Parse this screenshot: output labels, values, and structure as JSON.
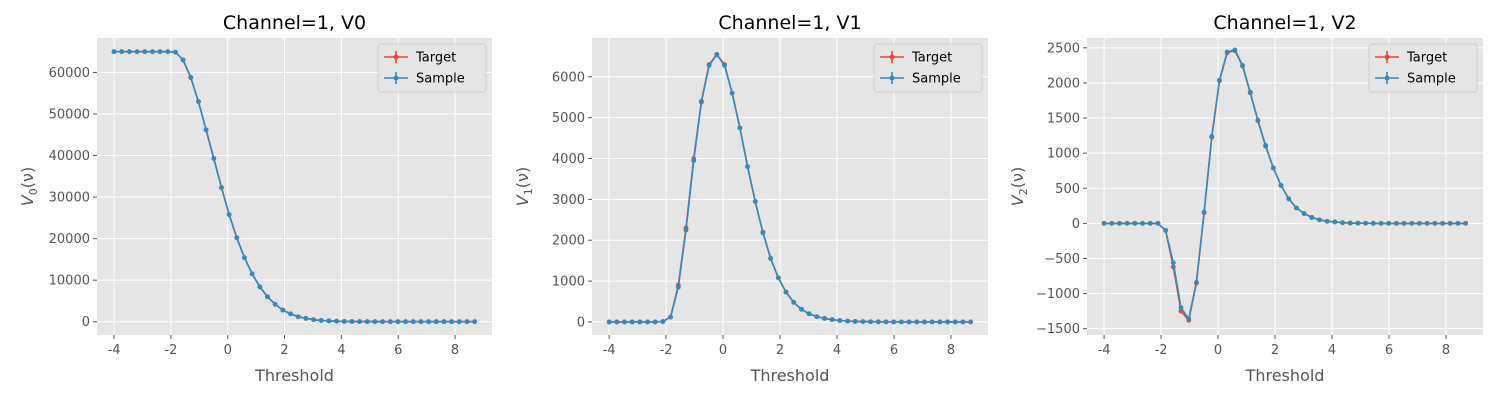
{
  "chart_data": [
    {
      "type": "line",
      "title": "Channel=1, V0",
      "xlabel": "Threshold",
      "ylabel": {
        "base": "V",
        "sub": "0",
        "arg": "(ν)"
      },
      "xlim": [
        -4.6,
        9.3
      ],
      "ylim": [
        -3200,
        68300
      ],
      "xticks": [
        -4,
        -2,
        0,
        2,
        4,
        6,
        8
      ],
      "yticks": [
        0,
        10000,
        20000,
        30000,
        40000,
        50000,
        60000
      ],
      "ytick_labels": [
        "0",
        "10000",
        "20000",
        "30000",
        "40000",
        "50000",
        "60000"
      ],
      "legend": {
        "position": "top-right",
        "entries": [
          "Target",
          "Sample"
        ]
      },
      "x": [
        -4.0,
        -3.73,
        -3.46,
        -3.19,
        -2.92,
        -2.65,
        -2.38,
        -2.11,
        -1.84,
        -1.57,
        -1.3,
        -1.03,
        -0.76,
        -0.49,
        -0.22,
        0.05,
        0.32,
        0.59,
        0.86,
        1.13,
        1.4,
        1.67,
        1.94,
        2.21,
        2.48,
        2.75,
        3.02,
        3.29,
        3.56,
        3.83,
        4.1,
        4.37,
        4.64,
        4.91,
        5.18,
        5.45,
        5.72,
        5.99,
        6.26,
        6.53,
        6.8,
        7.07,
        7.34,
        7.61,
        7.88,
        8.15,
        8.42,
        8.69
      ],
      "series": [
        {
          "name": "Target",
          "color": "#E24A33",
          "values": [
            65000,
            65000,
            65000,
            65000,
            65000,
            65000,
            65000,
            65000,
            64900,
            63000,
            58800,
            53000,
            46200,
            39300,
            32300,
            25800,
            20200,
            15400,
            11500,
            8400,
            6000,
            4200,
            2800,
            1900,
            1200,
            800,
            500,
            300,
            200,
            130,
            80,
            50,
            30,
            20,
            15,
            10,
            5,
            3,
            2,
            1,
            1,
            0,
            0,
            0,
            0,
            0,
            0,
            0
          ]
        },
        {
          "name": "Sample",
          "color": "#348ABD",
          "values": [
            65000,
            65000,
            65000,
            65000,
            65000,
            65000,
            65000,
            65000,
            64900,
            63000,
            58800,
            53000,
            46200,
            39300,
            32300,
            25800,
            20200,
            15400,
            11500,
            8400,
            6000,
            4200,
            2800,
            1900,
            1200,
            800,
            500,
            300,
            200,
            130,
            80,
            50,
            30,
            20,
            15,
            10,
            5,
            3,
            2,
            1,
            1,
            0,
            0,
            0,
            0,
            0,
            0,
            0
          ]
        }
      ]
    },
    {
      "type": "line",
      "title": "Channel=1, V1",
      "xlabel": "Threshold",
      "ylabel": {
        "base": "V",
        "sub": "1",
        "arg": "(ν)"
      },
      "xlim": [
        -4.6,
        9.3
      ],
      "ylim": [
        -320,
        6950
      ],
      "xticks": [
        -4,
        -2,
        0,
        2,
        4,
        6,
        8
      ],
      "yticks": [
        0,
        1000,
        2000,
        3000,
        4000,
        5000,
        6000
      ],
      "ytick_labels": [
        "0",
        "1000",
        "2000",
        "3000",
        "4000",
        "5000",
        "6000"
      ],
      "legend": {
        "position": "top-right",
        "entries": [
          "Target",
          "Sample"
        ]
      },
      "x": [
        -4.0,
        -3.73,
        -3.46,
        -3.19,
        -2.92,
        -2.65,
        -2.38,
        -2.11,
        -1.84,
        -1.57,
        -1.3,
        -1.03,
        -0.76,
        -0.49,
        -0.22,
        0.05,
        0.32,
        0.59,
        0.86,
        1.13,
        1.4,
        1.67,
        1.94,
        2.21,
        2.48,
        2.75,
        3.02,
        3.29,
        3.56,
        3.83,
        4.1,
        4.37,
        4.64,
        4.91,
        5.18,
        5.45,
        5.72,
        5.99,
        6.26,
        6.53,
        6.8,
        7.07,
        7.34,
        7.61,
        7.88,
        8.15,
        8.42,
        8.69
      ],
      "series": [
        {
          "name": "Target",
          "color": "#E24A33",
          "values": [
            0,
            0,
            0,
            0,
            0,
            0,
            0,
            10,
            120,
            900,
            2300,
            4000,
            5400,
            6300,
            6550,
            6300,
            5600,
            4750,
            3800,
            2950,
            2200,
            1550,
            1080,
            730,
            480,
            310,
            200,
            130,
            85,
            55,
            35,
            20,
            12,
            8,
            5,
            3,
            2,
            1,
            1,
            0,
            0,
            0,
            0,
            0,
            0,
            0,
            0,
            0
          ]
        },
        {
          "name": "Sample",
          "color": "#348ABD",
          "values": [
            0,
            0,
            0,
            0,
            0,
            0,
            0,
            10,
            120,
            850,
            2250,
            3950,
            5380,
            6280,
            6540,
            6280,
            5600,
            4750,
            3800,
            2950,
            2180,
            1560,
            1080,
            730,
            480,
            310,
            200,
            130,
            85,
            55,
            35,
            20,
            12,
            8,
            5,
            3,
            2,
            1,
            1,
            0,
            0,
            0,
            0,
            0,
            0,
            0,
            0,
            0
          ]
        }
      ]
    },
    {
      "type": "line",
      "title": "Channel=1, V2",
      "xlabel": "Threshold",
      "ylabel": {
        "base": "V",
        "sub": "2",
        "arg": "(ν)"
      },
      "xlim": [
        -4.6,
        9.3
      ],
      "ylim": [
        -1590,
        2640
      ],
      "xticks": [
        -4,
        -2,
        0,
        2,
        4,
        6,
        8
      ],
      "yticks": [
        -1500,
        -1000,
        -500,
        0,
        500,
        1000,
        1500,
        2000,
        2500
      ],
      "ytick_labels": [
        "−1500",
        "−1000",
        "−500",
        "0",
        "500",
        "1000",
        "1500",
        "2000",
        "2500"
      ],
      "legend": {
        "position": "top-right",
        "entries": [
          "Target",
          "Sample"
        ]
      },
      "x": [
        -4.0,
        -3.73,
        -3.46,
        -3.19,
        -2.92,
        -2.65,
        -2.38,
        -2.11,
        -1.84,
        -1.57,
        -1.3,
        -1.03,
        -0.76,
        -0.49,
        -0.22,
        0.05,
        0.32,
        0.59,
        0.86,
        1.13,
        1.4,
        1.67,
        1.94,
        2.21,
        2.48,
        2.75,
        3.02,
        3.29,
        3.56,
        3.83,
        4.1,
        4.37,
        4.64,
        4.91,
        5.18,
        5.45,
        5.72,
        5.99,
        6.26,
        6.53,
        6.8,
        7.07,
        7.34,
        7.61,
        7.88,
        8.15,
        8.42,
        8.69
      ],
      "series": [
        {
          "name": "Target",
          "color": "#E24A33",
          "values": [
            0,
            0,
            0,
            0,
            0,
            0,
            0,
            0,
            -100,
            -620,
            -1250,
            -1380,
            -850,
            150,
            1230,
            2030,
            2430,
            2460,
            2240,
            1860,
            1460,
            1100,
            790,
            540,
            350,
            220,
            140,
            85,
            50,
            30,
            20,
            10,
            5,
            3,
            2,
            1,
            0,
            0,
            0,
            0,
            0,
            0,
            0,
            0,
            0,
            0,
            0,
            0
          ]
        },
        {
          "name": "Sample",
          "color": "#348ABD",
          "values": [
            0,
            0,
            0,
            0,
            0,
            0,
            0,
            0,
            -100,
            -560,
            -1200,
            -1360,
            -840,
            160,
            1240,
            2040,
            2440,
            2470,
            2250,
            1870,
            1470,
            1110,
            790,
            540,
            350,
            220,
            140,
            85,
            50,
            30,
            20,
            10,
            5,
            3,
            2,
            1,
            0,
            0,
            0,
            0,
            0,
            0,
            0,
            0,
            0,
            0,
            0,
            0
          ]
        }
      ]
    }
  ]
}
